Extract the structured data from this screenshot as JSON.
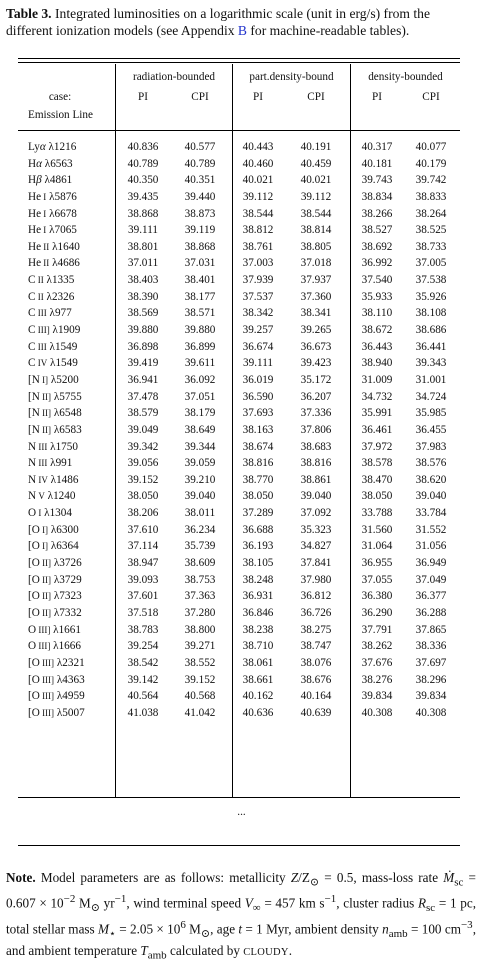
{
  "caption": {
    "label": "Table 3.",
    "text_before_link": " Integrated luminosities on a logarithmic scale (unit in erg/s) from the different ionization models (see Appendix ",
    "link": "B",
    "text_after_link": " for machine-readable tables)."
  },
  "header": {
    "case_label": "case:",
    "emission_label": "Emission Line",
    "groups": [
      "radiation-bounded",
      "part.density-bound",
      "density-bounded"
    ],
    "subcols": [
      "PI",
      "CPI",
      "PI",
      "CPI",
      "PI",
      "CPI"
    ]
  },
  "rows": [
    {
      "pre": "Ly",
      "greek": "α",
      "wl": "λ1216",
      "v": [
        "40.836",
        "40.577",
        "40.443",
        "40.191",
        "40.317",
        "40.077"
      ]
    },
    {
      "pre": "H",
      "greek": "α",
      "wl": "λ6563",
      "v": [
        "40.789",
        "40.789",
        "40.460",
        "40.459",
        "40.181",
        "40.179"
      ]
    },
    {
      "pre": "H",
      "greek": "β",
      "wl": "λ4861",
      "v": [
        "40.350",
        "40.351",
        "40.021",
        "40.021",
        "39.743",
        "39.742"
      ]
    },
    {
      "pre": "He",
      "ion": "I",
      "wl": "λ5876",
      "v": [
        "39.435",
        "39.440",
        "39.112",
        "39.112",
        "38.834",
        "38.833"
      ]
    },
    {
      "pre": "He",
      "ion": "I",
      "wl": "λ6678",
      "v": [
        "38.868",
        "38.873",
        "38.544",
        "38.544",
        "38.266",
        "38.264"
      ]
    },
    {
      "pre": "He",
      "ion": "I",
      "wl": "λ7065",
      "v": [
        "39.111",
        "39.119",
        "38.812",
        "38.814",
        "38.527",
        "38.525"
      ]
    },
    {
      "pre": "He",
      "ion": "II",
      "wl": "λ1640",
      "v": [
        "38.801",
        "38.868",
        "38.761",
        "38.805",
        "38.692",
        "38.733"
      ]
    },
    {
      "pre": "He",
      "ion": "II",
      "wl": "λ4686",
      "v": [
        "37.011",
        "37.031",
        "37.003",
        "37.018",
        "36.992",
        "37.005"
      ]
    },
    {
      "pre": "C",
      "ion": "II",
      "wl": "λ1335",
      "v": [
        "38.403",
        "38.401",
        "37.939",
        "37.937",
        "37.540",
        "37.538"
      ]
    },
    {
      "pre": "C",
      "ion": "II",
      "wl": "λ2326",
      "v": [
        "38.390",
        "38.177",
        "37.537",
        "37.360",
        "35.933",
        "35.926"
      ]
    },
    {
      "pre": "C",
      "ion": "III",
      "wl": "λ977",
      "v": [
        "38.569",
        "38.571",
        "38.342",
        "38.341",
        "38.110",
        "38.108"
      ]
    },
    {
      "pre": "C",
      "ion": "III]",
      "wl": "λ1909",
      "v": [
        "39.880",
        "39.880",
        "39.257",
        "39.265",
        "38.672",
        "38.686"
      ]
    },
    {
      "pre": "C",
      "ion": "III",
      "wl": "λ1549",
      "v": [
        "36.898",
        "36.899",
        "36.674",
        "36.673",
        "36.443",
        "36.441"
      ]
    },
    {
      "pre": "C",
      "ion": "IV",
      "wl": "λ1549",
      "v": [
        "39.419",
        "39.611",
        "39.111",
        "39.423",
        "38.940",
        "39.343"
      ]
    },
    {
      "pre": "[N",
      "ion": "I]",
      "wl": "λ5200",
      "v": [
        "36.941",
        "36.092",
        "36.019",
        "35.172",
        "31.009",
        "31.001"
      ]
    },
    {
      "pre": "[N",
      "ion": "II]",
      "wl": "λ5755",
      "v": [
        "37.478",
        "37.051",
        "36.590",
        "36.207",
        "34.732",
        "34.724"
      ]
    },
    {
      "pre": "[N",
      "ion": "II]",
      "wl": "λ6548",
      "v": [
        "38.579",
        "38.179",
        "37.693",
        "37.336",
        "35.991",
        "35.985"
      ]
    },
    {
      "pre": "[N",
      "ion": "II]",
      "wl": "λ6583",
      "v": [
        "39.049",
        "38.649",
        "38.163",
        "37.806",
        "36.461",
        "36.455"
      ]
    },
    {
      "pre": "N",
      "ion": "III",
      "wl": "λ1750",
      "v": [
        "39.342",
        "39.344",
        "38.674",
        "38.683",
        "37.972",
        "37.983"
      ]
    },
    {
      "pre": "N",
      "ion": "III",
      "wl": "λ991",
      "v": [
        "39.056",
        "39.059",
        "38.816",
        "38.816",
        "38.578",
        "38.576"
      ]
    },
    {
      "pre": "N",
      "ion": "IV",
      "wl": "λ1486",
      "v": [
        "39.152",
        "39.210",
        "38.770",
        "38.861",
        "38.470",
        "38.620"
      ]
    },
    {
      "pre": "N",
      "ion": "V",
      "wl": "λ1240",
      "v": [
        "38.050",
        "39.040",
        "38.050",
        "39.040",
        "38.050",
        "39.040"
      ]
    },
    {
      "pre": "O",
      "ion": "I",
      "wl": "λ1304",
      "v": [
        "38.206",
        "38.011",
        "37.289",
        "37.092",
        "33.788",
        "33.784"
      ]
    },
    {
      "pre": "[O",
      "ion": "I]",
      "wl": "λ6300",
      "v": [
        "37.610",
        "36.234",
        "36.688",
        "35.323",
        "31.560",
        "31.552"
      ]
    },
    {
      "pre": "[O",
      "ion": "I]",
      "wl": "λ6364",
      "v": [
        "37.114",
        "35.739",
        "36.193",
        "34.827",
        "31.064",
        "31.056"
      ]
    },
    {
      "pre": "[O",
      "ion": "II]",
      "wl": "λ3726",
      "v": [
        "38.947",
        "38.609",
        "38.105",
        "37.841",
        "36.955",
        "36.949"
      ]
    },
    {
      "pre": "[O",
      "ion": "II]",
      "wl": "λ3729",
      "v": [
        "39.093",
        "38.753",
        "38.248",
        "37.980",
        "37.055",
        "37.049"
      ]
    },
    {
      "pre": "[O",
      "ion": "II]",
      "wl": "λ7323",
      "v": [
        "37.601",
        "37.363",
        "36.931",
        "36.812",
        "36.380",
        "36.377"
      ]
    },
    {
      "pre": "[O",
      "ion": "II]",
      "wl": "λ7332",
      "v": [
        "37.518",
        "37.280",
        "36.846",
        "36.726",
        "36.290",
        "36.288"
      ]
    },
    {
      "pre": "O",
      "ion": "III]",
      "wl": "λ1661",
      "v": [
        "38.783",
        "38.800",
        "38.238",
        "38.275",
        "37.791",
        "37.865"
      ]
    },
    {
      "pre": "O",
      "ion": "III]",
      "wl": "λ1666",
      "v": [
        "39.254",
        "39.271",
        "38.710",
        "38.747",
        "38.262",
        "38.336"
      ]
    },
    {
      "pre": "[O",
      "ion": "III]",
      "wl": "λ2321",
      "v": [
        "38.542",
        "38.552",
        "38.061",
        "38.076",
        "37.676",
        "37.697"
      ]
    },
    {
      "pre": "[O",
      "ion": "III]",
      "wl": "λ4363",
      "v": [
        "39.142",
        "39.152",
        "38.661",
        "38.676",
        "38.276",
        "38.296"
      ]
    },
    {
      "pre": "[O",
      "ion": "III]",
      "wl": "λ4959",
      "v": [
        "40.564",
        "40.568",
        "40.162",
        "40.164",
        "39.834",
        "39.834"
      ]
    },
    {
      "pre": "[O",
      "ion": "III]",
      "wl": "λ5007",
      "v": [
        "41.038",
        "41.042",
        "40.636",
        "40.639",
        "40.308",
        "40.308"
      ]
    }
  ],
  "ellipsis": "...",
  "note": {
    "label": "Note.",
    "t1": " Model parameters are as follows: metallicity ",
    "t2": " = 0.5, mass-loss rate ",
    "t3": " = 0.607 × 10",
    "t3sup": "−2",
    "t4": " M",
    "t4b": " yr",
    "t4sup": "−1",
    "t5": ", wind terminal speed ",
    "t6": " = 457 km s",
    "t6sup": "−1",
    "t7": ", cluster radius ",
    "t8": " = 1 pc, total stellar mass ",
    "t9": " = 2.05 × 10",
    "t9sup": "6",
    "t10": " M",
    "t11": ", age ",
    "t12": " = 1 Myr, ambient density ",
    "t13": " = 100 cm",
    "t13sup": "−3",
    "t14": ", and ambient temperature ",
    "t15": " calculated by ",
    "t16": "CLOUDY",
    "t17": "."
  }
}
